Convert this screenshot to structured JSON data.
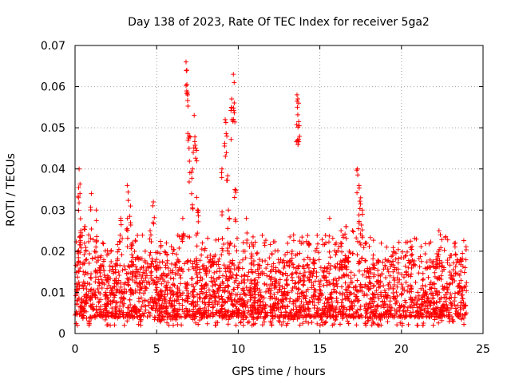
{
  "chart_data": {
    "type": "scatter",
    "title": "Day 138 of 2023, Rate Of TEC Index for receiver 5ga2",
    "xlabel": "GPS time / hours",
    "ylabel": "ROTI / TECUs",
    "xlim": [
      0,
      25
    ],
    "ylim": [
      0,
      0.07
    ],
    "grid": true,
    "marker": "+",
    "xticks": [
      0,
      5,
      10,
      15,
      20,
      25
    ],
    "xtick_labels": [
      "0",
      "5",
      "10",
      "15",
      "20",
      "25"
    ],
    "yticks": [
      0,
      0.01,
      0.02,
      0.03,
      0.04,
      0.05,
      0.06,
      0.07
    ],
    "ytick_labels": [
      "0",
      "0.01",
      "0.02",
      "0.03",
      "0.04",
      "0.05",
      "0.06",
      "0.07"
    ],
    "series": [
      {
        "name": "ROTI",
        "color": "#ff0000",
        "x": [
          0.1,
          0.2,
          0.25,
          0.3,
          0.35,
          0.5,
          0.6,
          0.7,
          0.9,
          1.0,
          1.2,
          1.3,
          1.5,
          1.7,
          2.0,
          2.2,
          2.5,
          2.8,
          3.0,
          3.2,
          3.4,
          3.5,
          3.7,
          4.0,
          4.3,
          4.6,
          4.8,
          5.0,
          5.3,
          5.6,
          6.0,
          6.3,
          6.6,
          6.8,
          6.85,
          6.9,
          7.0,
          7.2,
          7.3,
          7.4,
          7.5,
          7.8,
          8.0,
          8.3,
          8.6,
          9.0,
          9.2,
          9.3,
          9.4,
          9.5,
          9.6,
          9.7,
          9.75,
          9.8,
          10.0,
          10.3,
          10.5,
          10.8,
          11.0,
          11.3,
          11.6,
          12.0,
          12.3,
          12.6,
          13.0,
          13.3,
          13.6,
          13.65,
          13.7,
          14.0,
          14.3,
          14.6,
          15.0,
          15.3,
          15.6,
          16.0,
          16.3,
          16.6,
          16.8,
          17.0,
          17.3,
          17.4,
          17.5,
          17.6,
          17.8,
          18.0,
          18.3,
          18.6,
          19.0,
          19.3,
          19.6,
          20.0,
          20.3,
          20.6,
          21.0,
          21.3,
          21.6,
          22.0,
          22.3,
          22.6,
          23.0,
          23.3,
          23.6,
          23.9
        ],
        "y": [
          0.012,
          0.02,
          0.04,
          0.034,
          0.025,
          0.015,
          0.026,
          0.018,
          0.012,
          0.034,
          0.02,
          0.03,
          0.016,
          0.022,
          0.014,
          0.02,
          0.017,
          0.028,
          0.012,
          0.036,
          0.031,
          0.022,
          0.018,
          0.012,
          0.02,
          0.025,
          0.032,
          0.018,
          0.014,
          0.022,
          0.012,
          0.018,
          0.028,
          0.066,
          0.064,
          0.058,
          0.048,
          0.04,
          0.053,
          0.045,
          0.03,
          0.022,
          0.015,
          0.018,
          0.012,
          0.04,
          0.052,
          0.048,
          0.03,
          0.022,
          0.057,
          0.063,
          0.061,
          0.035,
          0.016,
          0.013,
          0.028,
          0.015,
          0.012,
          0.018,
          0.022,
          0.012,
          0.016,
          0.018,
          0.012,
          0.02,
          0.058,
          0.057,
          0.056,
          0.014,
          0.022,
          0.018,
          0.012,
          0.016,
          0.028,
          0.022,
          0.025,
          0.026,
          0.02,
          0.025,
          0.04,
          0.036,
          0.033,
          0.03,
          0.022,
          0.015,
          0.016,
          0.012,
          0.018,
          0.014,
          0.016,
          0.012,
          0.015,
          0.019,
          0.01,
          0.013,
          0.016,
          0.012,
          0.025,
          0.016,
          0.019,
          0.022,
          0.018,
          0.016
        ]
      }
    ],
    "baseline_band": {
      "x_range": [
        0,
        24
      ],
      "typical_low": 0.004,
      "typical_high": 0.018,
      "min_value": 0.002
    }
  }
}
